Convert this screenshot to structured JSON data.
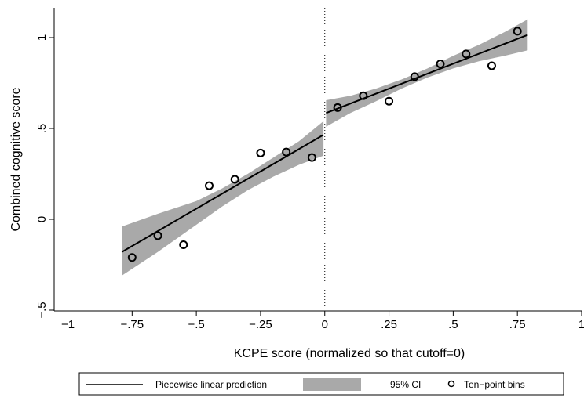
{
  "chart_data": {
    "type": "scatter",
    "xlabel": "KCPE score (normalized so that cutoff=0)",
    "ylabel": "Combined cognitive score",
    "xlim": [
      -1,
      1
    ],
    "ylim": [
      -0.5,
      1.15
    ],
    "x_ticks": [
      -1,
      -0.75,
      -0.5,
      -0.25,
      0,
      0.25,
      0.5,
      0.75,
      1
    ],
    "x_tick_labels": [
      "−1",
      "−.75",
      "−.5",
      "−.25",
      "0",
      ".25",
      ".5",
      ".75",
      "1"
    ],
    "y_ticks": [
      -0.5,
      0,
      0.5,
      1
    ],
    "y_tick_labels": [
      "−.5",
      "0",
      ".5",
      "1"
    ],
    "grid": false,
    "cutoff_line": {
      "x": 0,
      "style": "dotted"
    },
    "legend_position": "bottom",
    "series": [
      {
        "name": "Piecewise linear prediction",
        "kind": "line",
        "color": "#000000",
        "segments": [
          {
            "x": [
              -0.79,
              -0.005
            ],
            "y": [
              -0.18,
              0.465
            ]
          },
          {
            "x": [
              0.005,
              0.79
            ],
            "y": [
              0.585,
              1.015
            ]
          }
        ]
      },
      {
        "name": "95% CI",
        "kind": "band",
        "color": "#a9a9a9",
        "segments": [
          {
            "x": [
              -0.79,
              -0.65,
              -0.5,
              -0.4,
              -0.3,
              -0.2,
              -0.1,
              -0.005
            ],
            "lower": [
              -0.31,
              -0.18,
              -0.03,
              0.07,
              0.16,
              0.235,
              0.3,
              0.35
            ],
            "upper": [
              -0.04,
              0.03,
              0.1,
              0.17,
              0.25,
              0.34,
              0.43,
              0.54
            ]
          },
          {
            "x": [
              0.005,
              0.1,
              0.2,
              0.3,
              0.4,
              0.5,
              0.6,
              0.7,
              0.79
            ],
            "lower": [
              0.51,
              0.585,
              0.65,
              0.72,
              0.78,
              0.83,
              0.87,
              0.9,
              0.93
            ],
            "upper": [
              0.655,
              0.68,
              0.72,
              0.77,
              0.83,
              0.9,
              0.96,
              1.03,
              1.1
            ]
          }
        ]
      },
      {
        "name": "Ten−point bins",
        "kind": "scatter",
        "marker": "hollow-circle",
        "x": [
          -0.75,
          -0.65,
          -0.55,
          -0.45,
          -0.35,
          -0.25,
          -0.15,
          -0.05,
          0.05,
          0.15,
          0.25,
          0.35,
          0.45,
          0.55,
          0.65,
          0.75
        ],
        "y": [
          -0.21,
          -0.09,
          -0.14,
          0.185,
          0.22,
          0.365,
          0.37,
          0.34,
          0.615,
          0.68,
          0.65,
          0.785,
          0.855,
          0.91,
          0.845,
          1.035
        ]
      }
    ]
  }
}
